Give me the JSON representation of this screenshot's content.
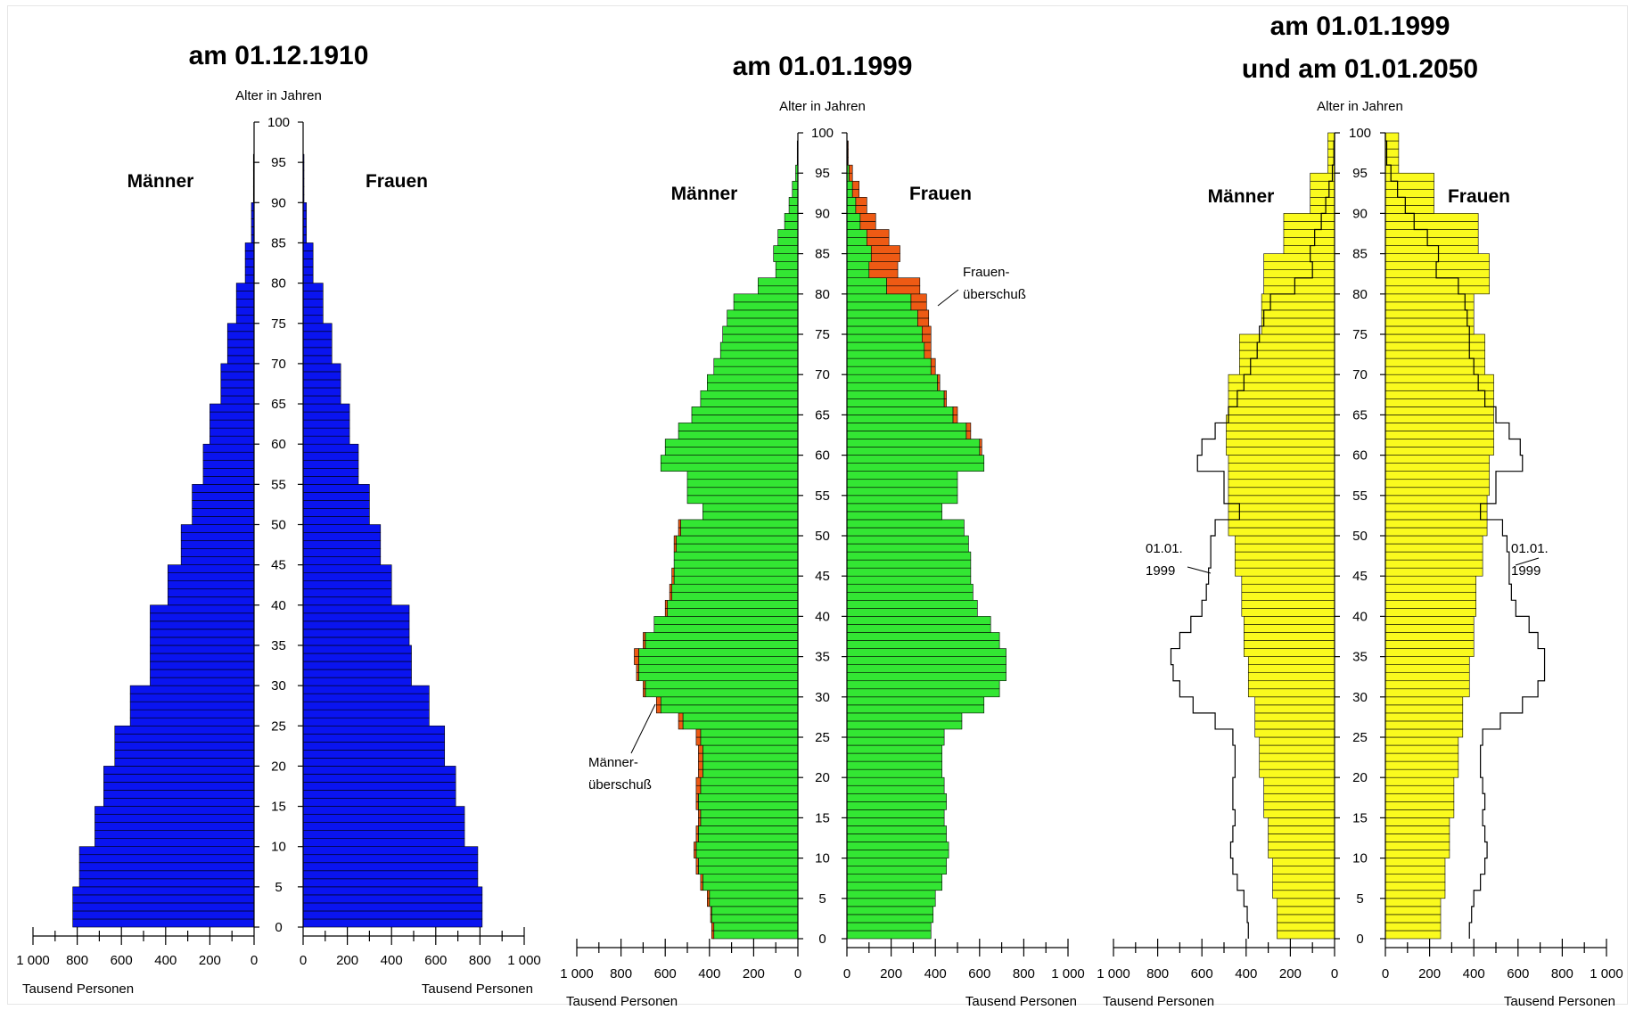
{
  "colors": {
    "panel1_bars": "#0a14f0",
    "panel2_bars": "#33e633",
    "panel2_surplus": "#ee5a14",
    "panel3_bars": "#fafa1e",
    "outline": "#000000"
  },
  "chart_data": [
    {
      "type": "bar",
      "orientation": "horizontal-population-pyramid",
      "title": "am 01.12.1910",
      "title_lines": [
        "am 01.12.1910"
      ],
      "ylabel": "Alter in Jahren",
      "xlabel_left": "Tausend Personen",
      "xlabel_right": "Tausend Personen",
      "left_label": "Männer",
      "right_label": "Frauen",
      "ylim": [
        0,
        100
      ],
      "y_ticks": [
        0,
        5,
        10,
        15,
        20,
        25,
        30,
        35,
        40,
        45,
        50,
        55,
        60,
        65,
        70,
        75,
        80,
        85,
        90,
        95,
        100
      ],
      "xlim": [
        0,
        1000
      ],
      "x_ticks_left": [
        "1 000",
        "800",
        "600",
        "400",
        "200",
        "0"
      ],
      "x_ticks_right": [
        "0",
        "200",
        "400",
        "600",
        "800",
        "1 000"
      ],
      "series": [
        {
          "name": "Männer",
          "age": [
            0,
            5,
            10,
            15,
            20,
            25,
            30,
            35,
            40,
            45,
            50,
            55,
            60,
            65,
            70,
            75,
            80,
            85,
            90
          ],
          "values": [
            820,
            790,
            720,
            680,
            630,
            560,
            470,
            470,
            390,
            330,
            280,
            230,
            200,
            150,
            120,
            80,
            40,
            12,
            3
          ]
        },
        {
          "name": "Frauen",
          "age": [
            0,
            5,
            10,
            15,
            20,
            25,
            30,
            35,
            40,
            45,
            50,
            55,
            60,
            65,
            70,
            75,
            80,
            85,
            90
          ],
          "values": [
            810,
            790,
            730,
            690,
            640,
            570,
            490,
            480,
            400,
            350,
            300,
            250,
            210,
            170,
            130,
            90,
            45,
            15,
            4
          ]
        }
      ]
    },
    {
      "type": "bar",
      "orientation": "horizontal-population-pyramid",
      "title": "am 01.01.1999",
      "title_lines": [
        "am 01.01.1999"
      ],
      "ylabel": "Alter in Jahren",
      "xlabel_left": "Tausend Personen",
      "xlabel_right": "Tausend Personen",
      "left_label": "Männer",
      "right_label": "Frauen",
      "ylim": [
        0,
        100
      ],
      "y_ticks": [
        0,
        5,
        10,
        15,
        20,
        25,
        30,
        35,
        40,
        45,
        50,
        55,
        60,
        65,
        70,
        75,
        80,
        85,
        90,
        95,
        100
      ],
      "xlim": [
        0,
        1000
      ],
      "x_ticks_left": [
        "1 000",
        "800",
        "600",
        "400",
        "200",
        "0"
      ],
      "x_ticks_right": [
        "0",
        "200",
        "400",
        "600",
        "800",
        "1 000"
      ],
      "annotations": [
        {
          "text_lines": [
            "Männer-",
            "überschuß"
          ],
          "age": 27,
          "side": "left"
        },
        {
          "text_lines": [
            "Frauen-",
            "überschuß"
          ],
          "age": 79,
          "side": "right"
        }
      ],
      "series": [
        {
          "name": "Männer",
          "age": [
            0,
            2,
            4,
            6,
            8,
            10,
            12,
            14,
            16,
            18,
            20,
            22,
            24,
            26,
            28,
            30,
            32,
            34,
            36,
            38,
            40,
            42,
            44,
            46,
            48,
            50,
            52,
            54,
            56,
            58,
            60,
            62,
            64,
            66,
            68,
            70,
            72,
            74,
            76,
            78,
            80,
            82,
            84,
            86,
            88,
            90,
            92,
            94,
            96
          ],
          "values": [
            390,
            395,
            410,
            440,
            460,
            470,
            460,
            450,
            460,
            460,
            450,
            450,
            460,
            540,
            640,
            700,
            730,
            740,
            700,
            650,
            600,
            580,
            570,
            560,
            560,
            540,
            430,
            500,
            500,
            620,
            600,
            540,
            480,
            440,
            410,
            380,
            350,
            340,
            320,
            290,
            180,
            100,
            110,
            90,
            60,
            40,
            25,
            10,
            3
          ]
        },
        {
          "name": "Frauen",
          "age": [
            0,
            2,
            4,
            6,
            8,
            10,
            12,
            14,
            16,
            18,
            20,
            22,
            24,
            26,
            28,
            30,
            32,
            34,
            36,
            38,
            40,
            42,
            44,
            46,
            48,
            50,
            52,
            54,
            56,
            58,
            60,
            62,
            64,
            66,
            68,
            70,
            72,
            74,
            76,
            78,
            80,
            82,
            84,
            86,
            88,
            90,
            92,
            94,
            96
          ],
          "values": [
            380,
            390,
            400,
            430,
            450,
            460,
            450,
            440,
            450,
            440,
            430,
            430,
            440,
            520,
            620,
            690,
            720,
            720,
            690,
            650,
            590,
            570,
            560,
            560,
            550,
            530,
            430,
            500,
            500,
            620,
            610,
            560,
            500,
            450,
            420,
            400,
            380,
            380,
            370,
            360,
            330,
            230,
            240,
            190,
            130,
            90,
            55,
            25,
            6
          ]
        }
      ]
    },
    {
      "type": "bar",
      "orientation": "horizontal-population-pyramid",
      "title": "am 01.01.1999 und am 01.01.2050",
      "title_lines": [
        "am 01.01.1999",
        "und am 01.01.2050"
      ],
      "ylabel": "Alter in Jahren",
      "xlabel_left": "Tausend Personen",
      "xlabel_right": "Tausend Personen",
      "left_label": "Männer",
      "right_label": "Frauen",
      "ylim": [
        0,
        100
      ],
      "y_ticks": [
        0,
        5,
        10,
        15,
        20,
        25,
        30,
        35,
        40,
        45,
        50,
        55,
        60,
        65,
        70,
        75,
        80,
        85,
        90,
        95,
        100
      ],
      "xlim": [
        0,
        1000
      ],
      "x_ticks_left": [
        "1 000",
        "800",
        "600",
        "400",
        "200",
        "0"
      ],
      "x_ticks_right": [
        "0",
        "200",
        "400",
        "600",
        "800",
        "1 000"
      ],
      "annotations": [
        {
          "text_lines": [
            "01.01.",
            "1999"
          ],
          "age": 47,
          "side": "left"
        },
        {
          "text_lines": [
            "01.01.",
            "1999"
          ],
          "age": 47,
          "side": "right"
        }
      ],
      "series": [
        {
          "name": "Männer 2050",
          "age": [
            0,
            5,
            10,
            15,
            20,
            25,
            30,
            35,
            40,
            45,
            50,
            55,
            60,
            65,
            70,
            75,
            80,
            85,
            90,
            95
          ],
          "values": [
            260,
            280,
            300,
            320,
            340,
            360,
            390,
            410,
            420,
            450,
            480,
            480,
            490,
            480,
            430,
            330,
            320,
            230,
            110,
            30
          ]
        },
        {
          "name": "Frauen 2050",
          "age": [
            0,
            5,
            10,
            15,
            20,
            25,
            30,
            35,
            40,
            45,
            50,
            55,
            60,
            65,
            70,
            75,
            80,
            85,
            90,
            95
          ],
          "values": [
            250,
            270,
            290,
            310,
            330,
            350,
            380,
            400,
            410,
            440,
            460,
            470,
            490,
            490,
            450,
            400,
            470,
            420,
            220,
            60
          ]
        },
        {
          "name": "Männer 1999",
          "age": [
            0,
            2,
            4,
            6,
            8,
            10,
            12,
            14,
            16,
            18,
            20,
            22,
            24,
            26,
            28,
            30,
            32,
            34,
            36,
            38,
            40,
            42,
            44,
            46,
            48,
            50,
            52,
            54,
            56,
            58,
            60,
            62,
            64,
            66,
            68,
            70,
            72,
            74,
            76,
            78,
            80,
            82,
            84,
            86,
            88,
            90,
            92,
            94,
            96
          ],
          "values": [
            390,
            395,
            410,
            440,
            460,
            470,
            460,
            450,
            460,
            460,
            450,
            450,
            460,
            540,
            640,
            700,
            730,
            740,
            700,
            650,
            600,
            580,
            570,
            560,
            560,
            540,
            430,
            500,
            500,
            620,
            600,
            540,
            480,
            440,
            410,
            380,
            350,
            340,
            320,
            290,
            180,
            100,
            110,
            90,
            60,
            40,
            25,
            10,
            3
          ]
        },
        {
          "name": "Frauen 1999",
          "age": [
            0,
            2,
            4,
            6,
            8,
            10,
            12,
            14,
            16,
            18,
            20,
            22,
            24,
            26,
            28,
            30,
            32,
            34,
            36,
            38,
            40,
            42,
            44,
            46,
            48,
            50,
            52,
            54,
            56,
            58,
            60,
            62,
            64,
            66,
            68,
            70,
            72,
            74,
            76,
            78,
            80,
            82,
            84,
            86,
            88,
            90,
            92,
            94,
            96
          ],
          "values": [
            380,
            390,
            400,
            430,
            450,
            460,
            450,
            440,
            450,
            440,
            430,
            430,
            440,
            520,
            620,
            690,
            720,
            720,
            690,
            650,
            590,
            570,
            560,
            560,
            550,
            530,
            430,
            500,
            500,
            620,
            610,
            560,
            500,
            450,
            420,
            400,
            380,
            380,
            370,
            360,
            330,
            230,
            240,
            190,
            130,
            90,
            55,
            25,
            6
          ]
        }
      ]
    }
  ]
}
